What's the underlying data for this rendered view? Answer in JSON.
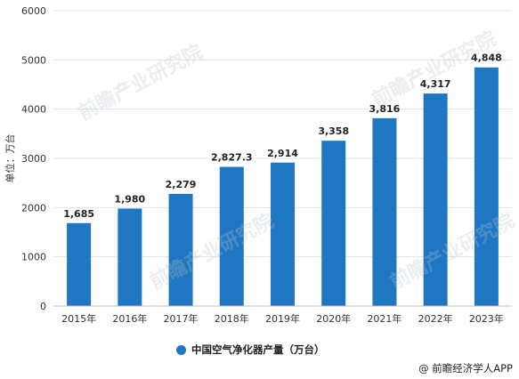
{
  "chart_data": {
    "type": "bar",
    "title": "",
    "xlabel": "",
    "ylabel": "单位：万台",
    "categories": [
      "2015年",
      "2016年",
      "2017年",
      "2018年",
      "2019年",
      "2020年",
      "2021年",
      "2022年",
      "2023年"
    ],
    "series": [
      {
        "name": "中国空气净化器产量（万台）",
        "values": [
          1685,
          1980,
          2279,
          2827.3,
          2914,
          3358,
          3816,
          4317,
          4848
        ],
        "value_labels": [
          "1,685",
          "1,980",
          "2,279",
          "2,827.3",
          "2,914",
          "3,358",
          "3,816",
          "4,317",
          "4,848"
        ],
        "color": "#1f77c4"
      }
    ],
    "ylim": [
      0,
      6000
    ],
    "yticks": [
      0,
      1000,
      2000,
      3000,
      4000,
      5000,
      6000
    ],
    "ytick_labels": [
      "0",
      "1000",
      "2000",
      "3000",
      "4000",
      "5000",
      "6000"
    ],
    "grid": true,
    "legend_position": "bottom"
  },
  "watermark": "前瞻产业研究院",
  "credit": "@ 前瞻经济学人APP"
}
